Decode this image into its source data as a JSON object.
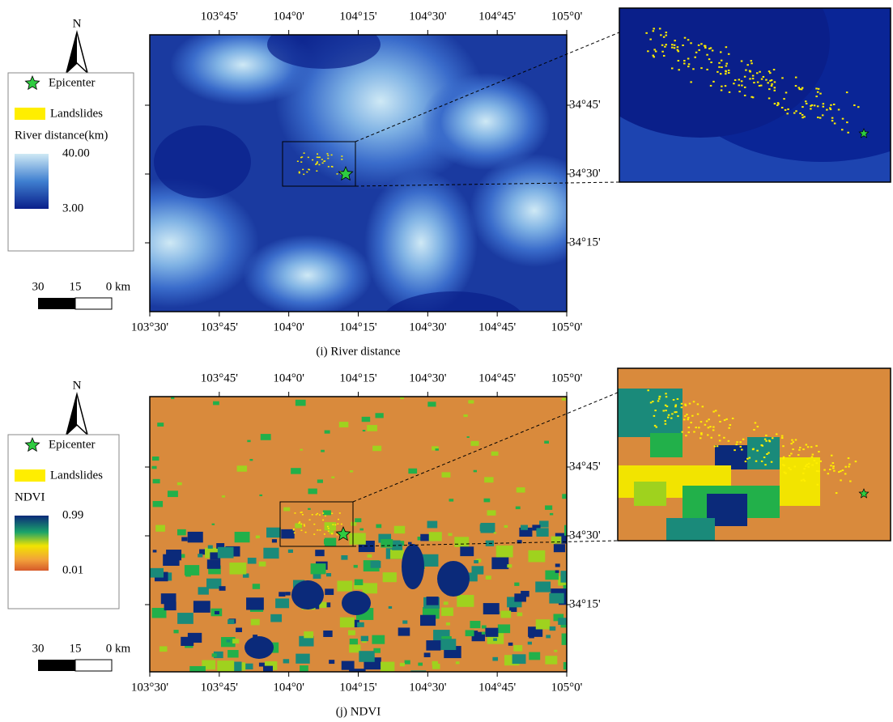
{
  "panels": [
    {
      "caption": "(i) River distance",
      "north": "N",
      "legend": {
        "epicenter": "Epicenter",
        "landslides": "Landslides",
        "title": "River distance(km)",
        "max": "40.00",
        "min": "3.00"
      },
      "scale": [
        "30",
        "15",
        "0 km"
      ],
      "top_labels": [
        "103°45'",
        "104°0'",
        "104°15'",
        "104°30'",
        "104°45'",
        "105°0'"
      ],
      "bottom_labels": [
        "103°30'",
        "103°45'",
        "104°0'",
        "104°15'",
        "104°30'",
        "104°45'",
        "105°0'"
      ],
      "right_labels": [
        "34°45'",
        "34°30'",
        "34°15'"
      ]
    },
    {
      "caption": "(j) NDVI",
      "north": "N",
      "legend": {
        "epicenter": "Epicenter",
        "landslides": "Landslides",
        "title": "NDVI",
        "max": "0.99",
        "min": "0.01"
      },
      "scale": [
        "30",
        "15",
        "0 km"
      ],
      "top_labels": [
        "103°45'",
        "104°0'",
        "104°15'",
        "104°30'",
        "104°45'",
        "105°0'"
      ],
      "bottom_labels": [
        "103°30'",
        "103°45'",
        "104°0'",
        "104°15'",
        "104°30'",
        "104°45'",
        "105°0'"
      ],
      "right_labels": [
        "34°45'",
        "34°30'",
        "34°15'"
      ]
    }
  ]
}
